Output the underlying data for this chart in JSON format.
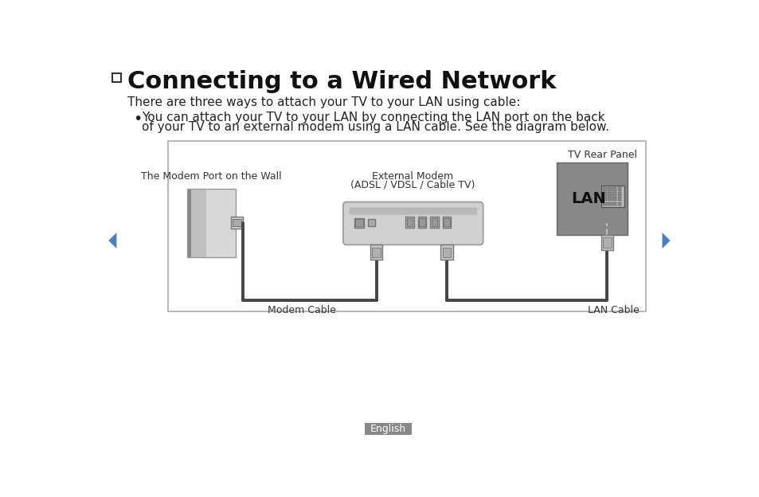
{
  "title": "Connecting to a Wired Network",
  "subtitle": "There are three ways to attach your TV to your LAN using cable:",
  "bullet_line1": "You can attach your TV to your LAN by connecting the LAN port on the back",
  "bullet_line2": "of your TV to an external modem using a LAN cable. See the diagram below.",
  "diagram_labels": {
    "modem_port_label": "The Modem Port on the Wall",
    "external_modem_label1": "External Modem",
    "external_modem_label2": "(ADSL / VDSL / Cable TV)",
    "tv_rear_label": "TV Rear Panel",
    "modem_cable_label": "Modem Cable",
    "lan_cable_label": "LAN Cable",
    "lan_text": "LAN"
  },
  "nav_arrow_color": "#4a7fc1",
  "footer_text": "English",
  "bg_color": "#ffffff",
  "cable_color": "#444444",
  "footer_bg": "#888888",
  "footer_text_color": "#ffffff"
}
